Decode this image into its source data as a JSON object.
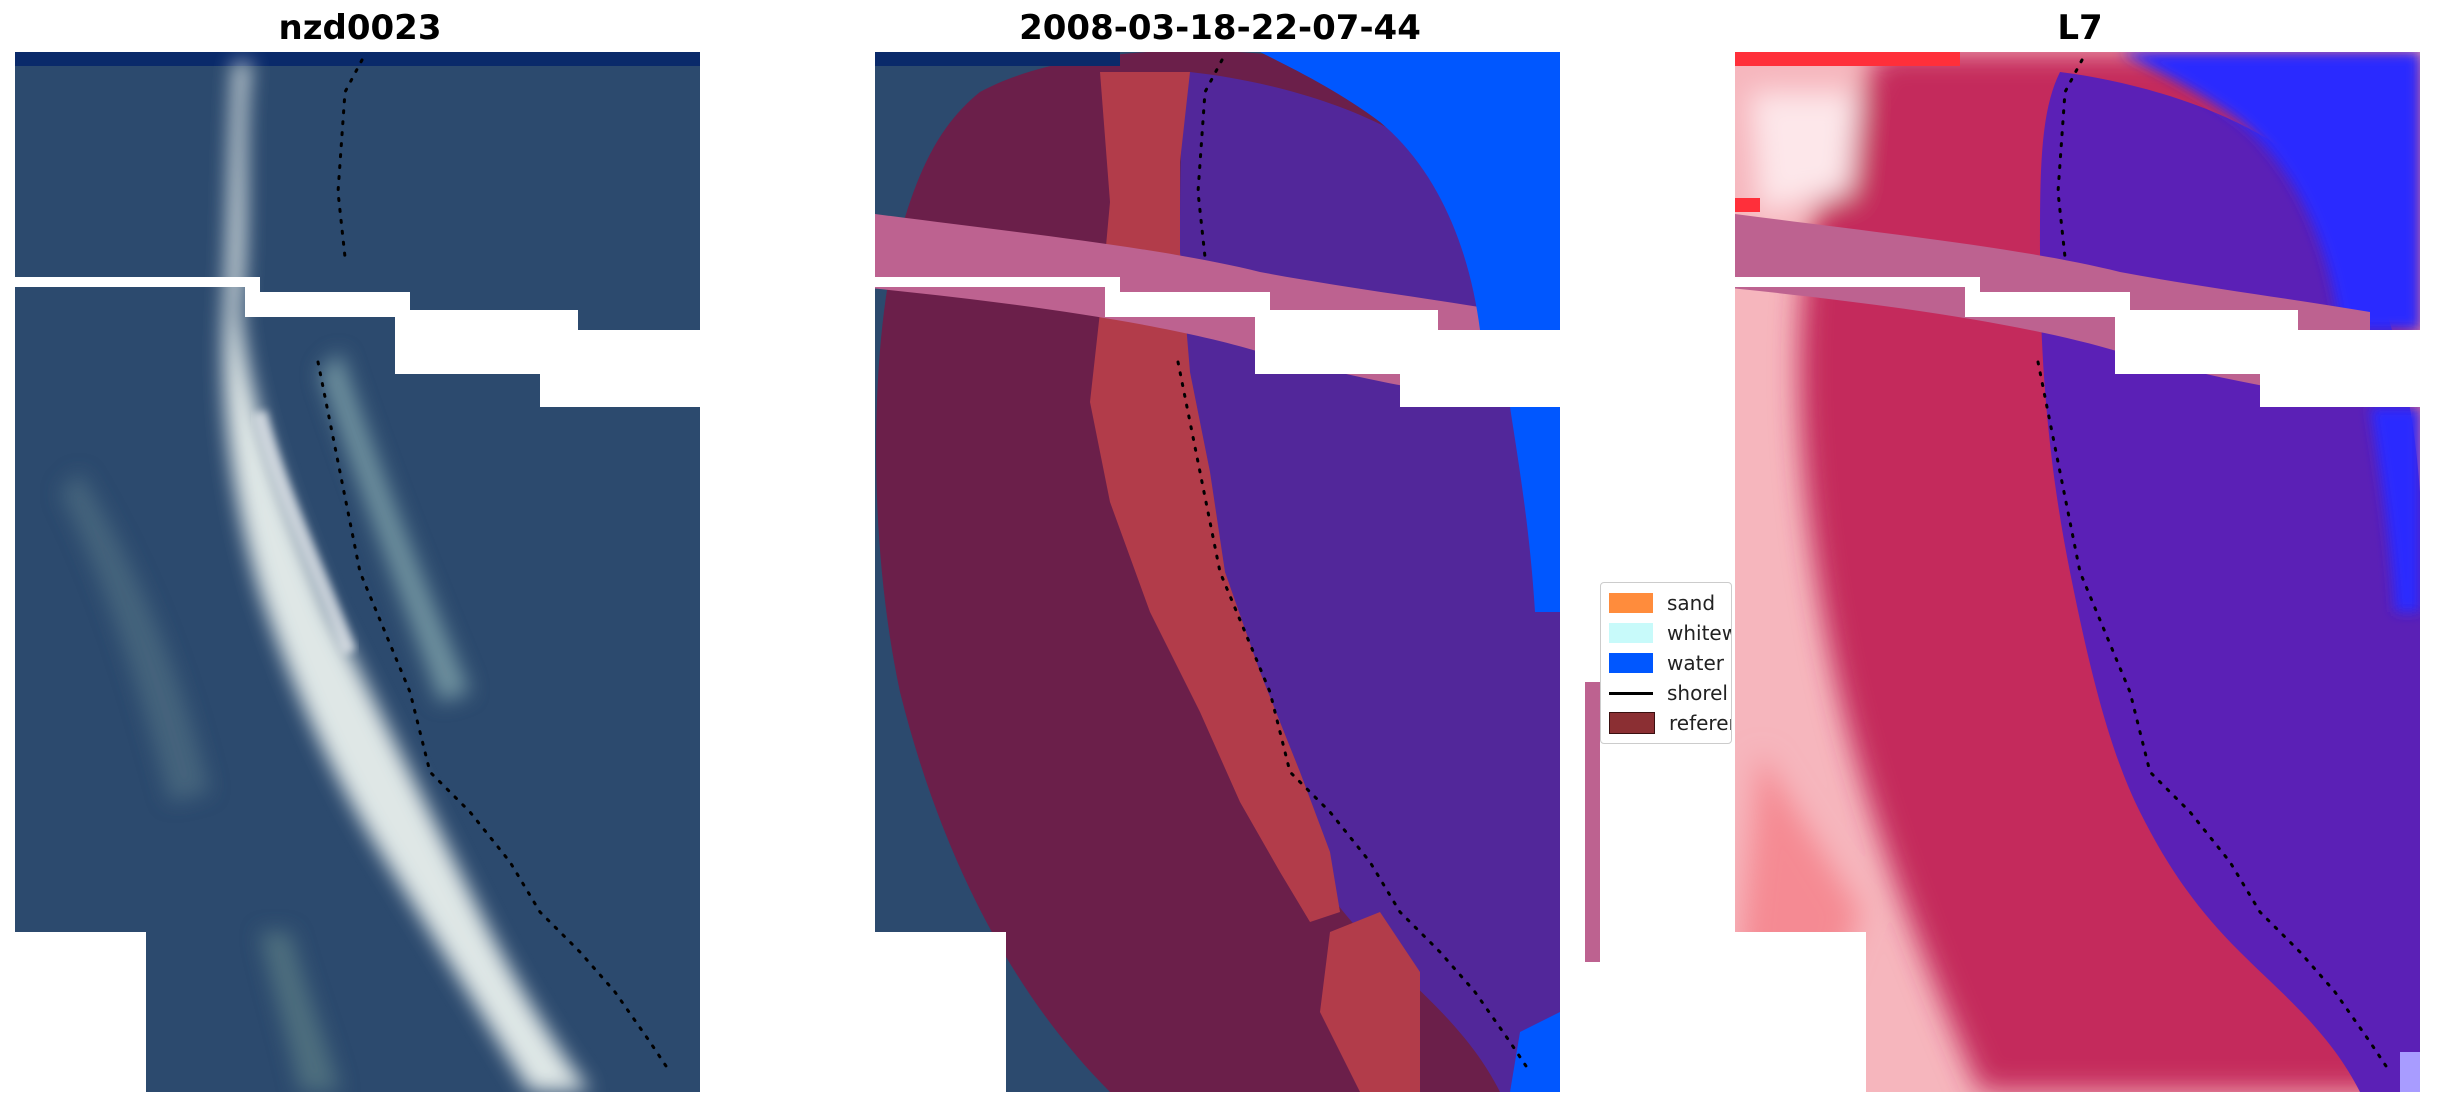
{
  "panels": [
    {
      "title": "nzd0023"
    },
    {
      "title": "2008-03-18-22-07-44"
    },
    {
      "title": "L7"
    }
  ],
  "legend": {
    "items": [
      {
        "label": "sand",
        "color": "#ff8c3c"
      },
      {
        "label": "whitew",
        "color": "#c8fafa"
      },
      {
        "label": "water",
        "color": "#0057ff"
      },
      {
        "label": "shorel",
        "color": "#000000"
      },
      {
        "label": "referer",
        "color": "#8b2f33"
      }
    ]
  },
  "colors": {
    "ocean_dark": "#2c4a6e",
    "beach_bright": "#dfe7e6",
    "class_water": "#0057ff",
    "class_sand": "#b23c4a",
    "class_land": "#6b1f4a",
    "class_water_purple": "#52279a",
    "buffer_pink": "#bd6290",
    "l7_land": "#c42c5c",
    "l7_pale": "#f6b6bd",
    "l7_water": "#5b20b6",
    "l7_blue": "#2a2bff"
  }
}
